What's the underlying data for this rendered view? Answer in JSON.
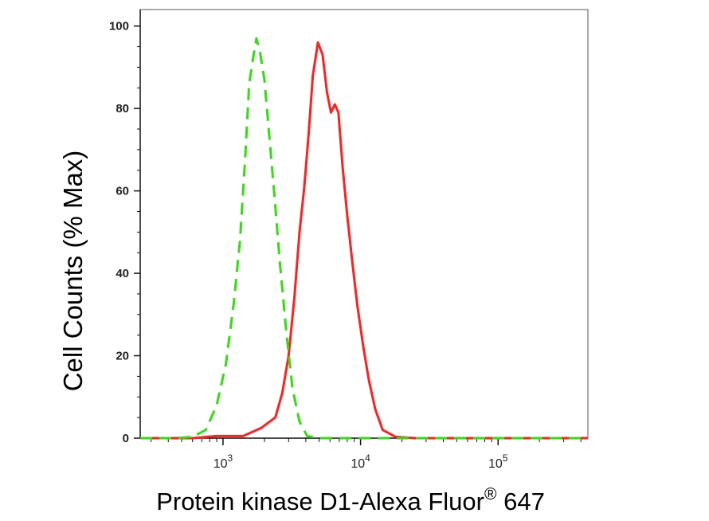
{
  "chart_data": {
    "type": "line",
    "title": "",
    "xlabel": {
      "main": "Protein kinase D1-Alexa Fluor",
      "superscript": "®",
      "suffix": " 647"
    },
    "ylabel": "Cell Counts (% Max)",
    "xscale": "log",
    "xlim": [
      250,
      450000
    ],
    "ylim": [
      0,
      104
    ],
    "yticks": [
      0,
      20,
      40,
      60,
      80,
      100
    ],
    "xticks": [
      {
        "value": 1000,
        "base": "10",
        "exp": "3"
      },
      {
        "value": 10000,
        "base": "10",
        "exp": "4"
      },
      {
        "value": 100000,
        "base": "10",
        "exp": "5"
      }
    ],
    "grid": false,
    "legend": "none",
    "series": [
      {
        "color": "#ff2020",
        "style": "solid",
        "points": [
          [
            250,
            0
          ],
          [
            600,
            0
          ],
          [
            900,
            0.5
          ],
          [
            1400,
            0.5
          ],
          [
            1900,
            2.5
          ],
          [
            2400,
            5
          ],
          [
            2700,
            11
          ],
          [
            3000,
            20
          ],
          [
            3300,
            34
          ],
          [
            3600,
            50
          ],
          [
            3900,
            61
          ],
          [
            4200,
            74
          ],
          [
            4500,
            88
          ],
          [
            4900,
            96
          ],
          [
            5300,
            93
          ],
          [
            5700,
            84
          ],
          [
            6100,
            79
          ],
          [
            6500,
            81
          ],
          [
            6900,
            79
          ],
          [
            7400,
            66
          ],
          [
            8000,
            54
          ],
          [
            8700,
            43
          ],
          [
            9500,
            32
          ],
          [
            10500,
            22
          ],
          [
            11500,
            14
          ],
          [
            12800,
            7
          ],
          [
            14500,
            2
          ],
          [
            18000,
            0.3
          ],
          [
            25000,
            0
          ],
          [
            450000,
            0
          ]
        ]
      },
      {
        "color": "#33dd11",
        "style": "dashed",
        "points": [
          [
            250,
            0
          ],
          [
            450,
            0
          ],
          [
            600,
            0.3
          ],
          [
            750,
            2
          ],
          [
            900,
            8
          ],
          [
            1050,
            18
          ],
          [
            1200,
            33
          ],
          [
            1330,
            48
          ],
          [
            1450,
            68
          ],
          [
            1550,
            86
          ],
          [
            1650,
            92
          ],
          [
            1750,
            97
          ],
          [
            1850,
            94
          ],
          [
            2000,
            87
          ],
          [
            2150,
            75
          ],
          [
            2350,
            60
          ],
          [
            2600,
            42
          ],
          [
            2900,
            25
          ],
          [
            3200,
            12
          ],
          [
            3600,
            4
          ],
          [
            4100,
            0.5
          ],
          [
            5000,
            0
          ],
          [
            450000,
            0
          ]
        ]
      }
    ]
  }
}
